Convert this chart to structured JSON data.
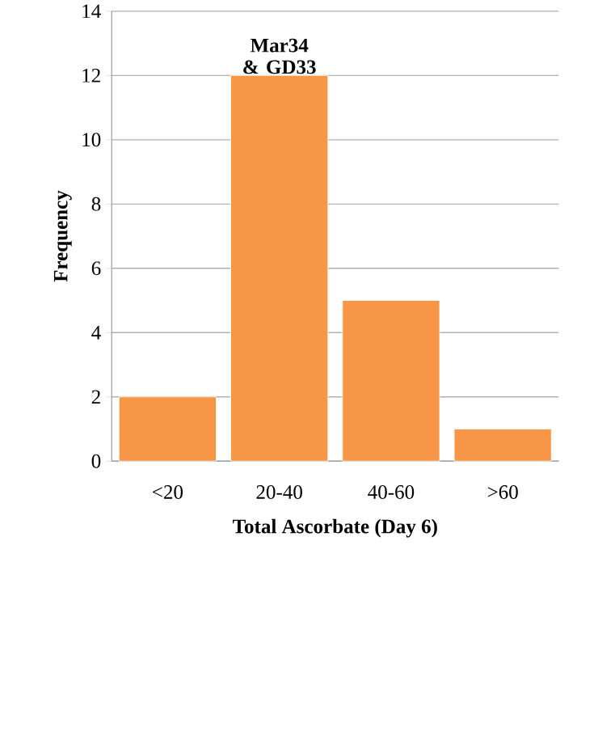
{
  "chart_data": {
    "type": "bar",
    "categories": [
      "<20",
      "20-40",
      "40-60",
      ">60"
    ],
    "values": [
      2,
      12,
      5,
      1
    ],
    "color": "#f79646",
    "xlabel": "Total Ascorbate (Day 6)",
    "ylabel": "Frequency",
    "ylim": [
      0,
      14
    ],
    "yticks": [
      0,
      2,
      4,
      6,
      8,
      10,
      12,
      14
    ],
    "grid": "y",
    "annotations": [
      {
        "text": "Mar34 & GD33",
        "x": "20-40",
        "y": 12
      }
    ]
  }
}
